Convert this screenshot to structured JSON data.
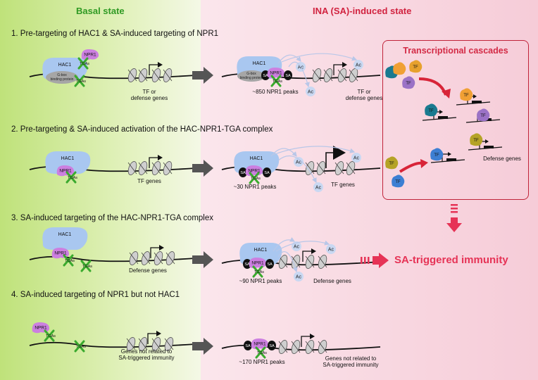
{
  "headers": {
    "basal": "Basal state",
    "induced": "INA (SA)-induced state"
  },
  "colors": {
    "basal_header": "#2f9a23",
    "induced_header": "#d1223f",
    "accent_red": "#e63356",
    "hac1": "#a9c7f0",
    "npr1": "#cc7fe0",
    "tga": "#3aaa2e",
    "sa": "#111111",
    "ac": "#c9d8f2"
  },
  "sections": [
    "1. Pre-targeting of HAC1 & SA-induced targeting of NPR1",
    "2. Pre-targeting & SA-induced activation of the HAC-NPR1-TGA complex",
    "3. SA-induced targeting of the HAC-NPR1-TGA complex",
    "4. SA-induced targeting of NPR1 but not HAC1"
  ],
  "molecules": {
    "hac1": "HAC1",
    "npr1": "NPR1",
    "tgas": "TGAs",
    "sa": "SA",
    "ac": "Ac",
    "tf": "TF",
    "gbox": "G-box\nbinding protein"
  },
  "row1": {
    "basal_genes": "TF or\ndefense genes",
    "peaks": "~850 NPR1 peaks",
    "induced_genes": "TF or\ndefense genes"
  },
  "row2": {
    "basal_genes": "TF genes",
    "peaks": "~30 NPR1 peaks",
    "induced_genes": "TF genes"
  },
  "row3": {
    "basal_genes": "Defense genes",
    "peaks": "~90 NPR1 peaks",
    "induced_genes": "Defense genes"
  },
  "row4": {
    "basal_genes": "Genes not related to\nSA-triggered immunity",
    "peaks": "~170 NPR1 peaks",
    "induced_genes": "Genes not related to\nSA-triggered immunity"
  },
  "cascade": {
    "title": "Transcriptional cascades",
    "defense_genes": "Defense genes"
  },
  "outcome": "SA-triggered immunity"
}
